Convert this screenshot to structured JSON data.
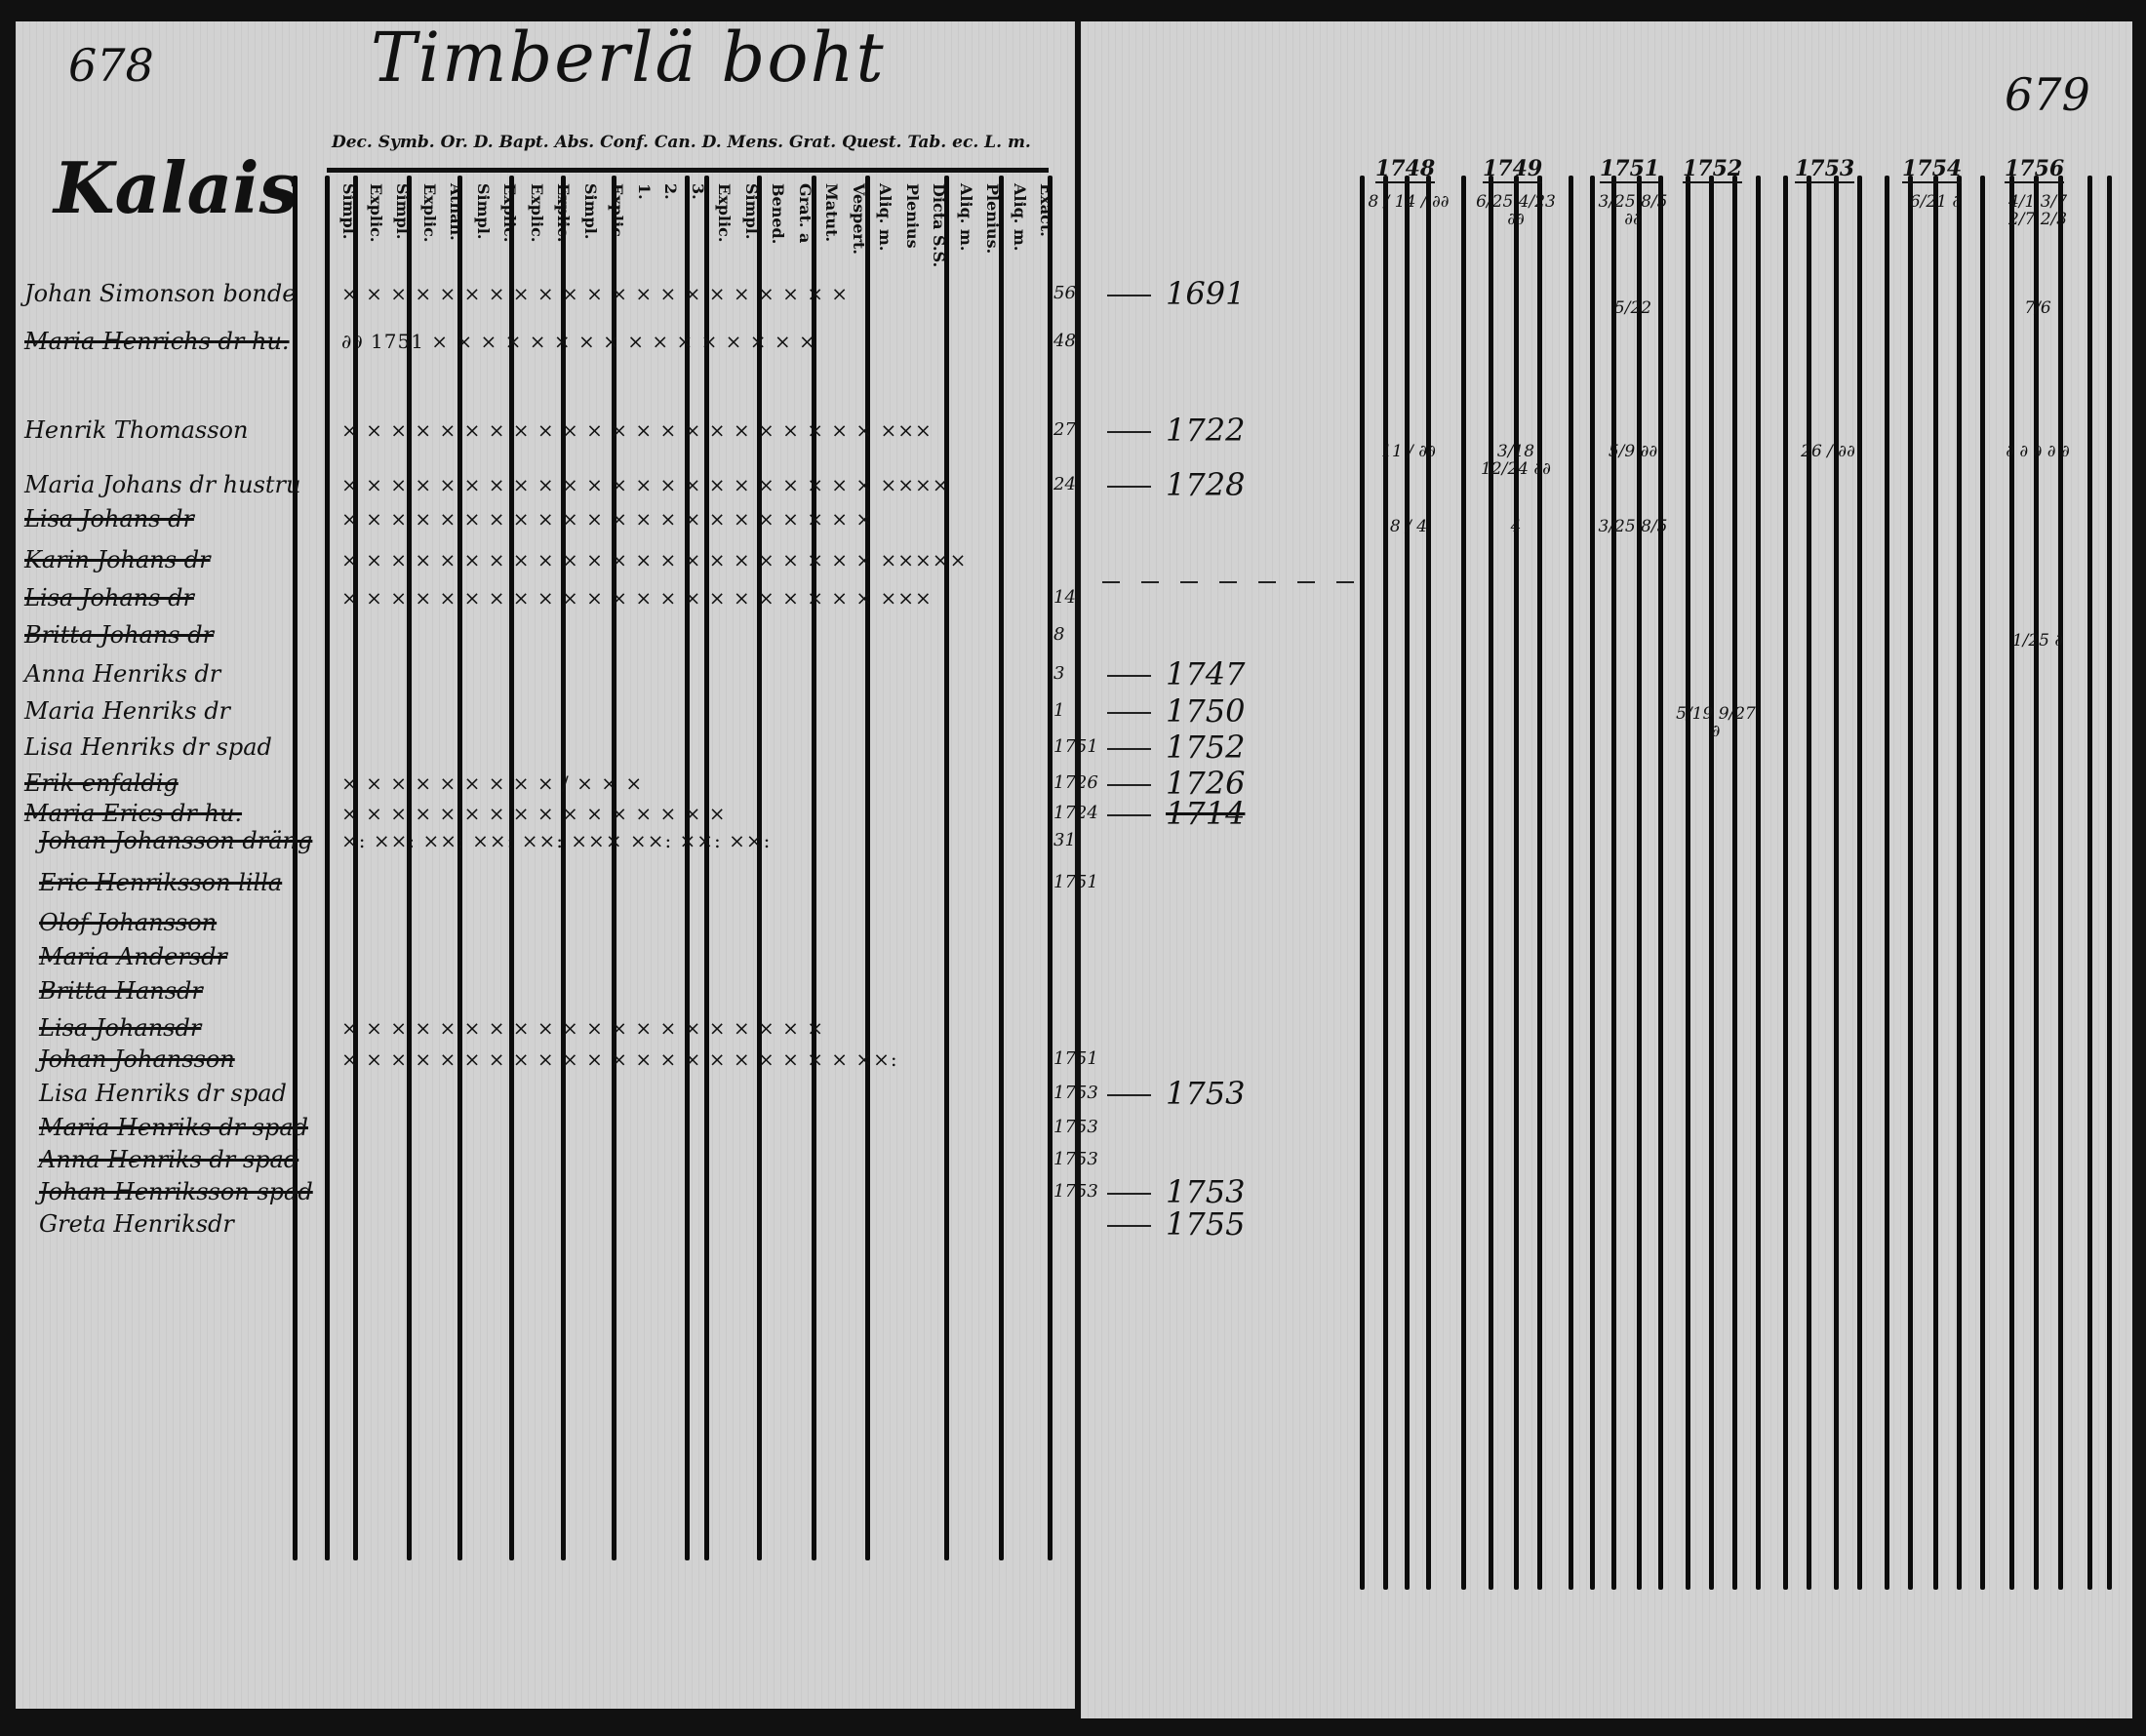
{
  "left_page": {
    "page_number": "678",
    "title": "Timberlä boht",
    "section": "Kalais",
    "header_line": "Dec. Symb. Or. D. Bapt. Abs. Conf. Can. D. Mens. Grat. Quest. Tab. ec. L. m.",
    "column_headers": [
      "Simpl.",
      "Explic.",
      "Simpl.",
      "Explic.",
      "Athan.",
      "Simpl.",
      "Explic.",
      "Explic.",
      "Explic.",
      "Simpl.",
      "Explic.",
      "1.",
      "2.",
      "3.",
      "Explic.",
      "Simpl.",
      "Bened.",
      "Grat. a",
      "Matut.",
      "Vespert.",
      "Aliq. m.",
      "Plenius",
      "Dicta S.S.",
      "Aliq. m.",
      "Plenius.",
      "Aliq. m.",
      "Exact."
    ],
    "rows": [
      {
        "name": "Johan Simonson bonde",
        "struck": false,
        "marks": "× ×  × × × ×  × ×  × ×  × ×  × × ×  × ×  × ×  × ×",
        "age": "56",
        "birth_year": "1691"
      },
      {
        "name": "Maria Henrichs dr hu.",
        "struck": true,
        "marks": "∂∂ 1751  × ×  × ×  × ×  × ×  × ×  × ×  × ×  × ×",
        "age": "48",
        "birth_year": ""
      },
      {
        "name": "Henrik Thomasson",
        "struck": false,
        "marks": "× ×  × × ×  × ×  × ×  × ×  × ×  × × ×  × ×  × ×  × ×  ×××",
        "age": "27",
        "birth_year": "1722"
      },
      {
        "name": "Maria Johans dr hustru",
        "struck": false,
        "marks": "× ×  × × ×  × ×  × ×  × ×  × ×  × × ×  × ×  × ×  × ×  ××××",
        "age": "24",
        "birth_year": "1728"
      },
      {
        "name": "Lisa Johans dr",
        "struck": true,
        "marks": "× ×  × × ×  × ×  × ×  × ×  × ×  × × ×  × ×  × ×  × ×",
        "age": "",
        "birth_year": ""
      },
      {
        "name": "Karin Johans dr",
        "struck": true,
        "marks": "× ×  × × ×  × ×  × ×  × ×  × ×  × × ×  × ×  × ×  × ×  ×××××",
        "age": "",
        "birth_year": ""
      },
      {
        "name": "Lisa Johans dr",
        "struck": true,
        "marks": "× ×  × × ×  × ×  × ×  × ×  × ×  × × ×  × ×  × ×  × ×  ×××",
        "age": "14",
        "birth_year": ""
      },
      {
        "name": "Britta Johans dr",
        "struck": true,
        "marks": "",
        "age": "8",
        "birth_year": ""
      },
      {
        "name": "Anna Henriks dr",
        "struck": false,
        "marks": "",
        "age": "3",
        "birth_year": "1747"
      },
      {
        "name": "Maria Henriks dr",
        "struck": false,
        "marks": "",
        "age": "1",
        "birth_year": "1750"
      },
      {
        "name": "Lisa Henriks dr spad",
        "struck": false,
        "marks": "",
        "age": "1751",
        "birth_year": "1752"
      },
      {
        "name": "Erik enfaldig",
        "struck": true,
        "marks": "×   ×   ×   ×   ×   × × ×  × /  ×   ×   ×",
        "age": "1726",
        "birth_year": "1726"
      },
      {
        "name": "Maria Erics dr hu.",
        "struck": true,
        "marks": "× ×  × ×  × ×  × ×  × ×  × ×  × ×  × ×",
        "age": "1724",
        "birth_year": "1714"
      },
      {
        "name": "Johan Johansson dräng",
        "struck": true,
        "marks": "×:  ××:  ××:  ××:  ××:  ×××  ××:  ××:  ××:",
        "age": "31",
        "birth_year": ""
      },
      {
        "name": "Eric Henriksson lilla",
        "struck": true,
        "marks": "",
        "age": "1751",
        "birth_year": ""
      },
      {
        "name": "Olof Johansson",
        "struck": true,
        "marks": "",
        "age": "",
        "birth_year": ""
      },
      {
        "name": "Maria Andersdr",
        "struck": true,
        "marks": "",
        "age": "",
        "birth_year": ""
      },
      {
        "name": "Britta Hansdr",
        "struck": true,
        "marks": "",
        "age": "",
        "birth_year": ""
      },
      {
        "name": "Lisa Johansdr",
        "struck": true,
        "marks": "× ×  × ×  × ×  × ×  × ×  × × × ×  × ×  × × × ×",
        "age": "",
        "birth_year": ""
      },
      {
        "name": "Johan Johansson",
        "struck": true,
        "marks": "× ×  × × ×  × ×  × ×  × ×  × × ×  × ×  × × ×  × ×  ××:",
        "age": "1751",
        "birth_year": ""
      },
      {
        "name": "Lisa Henriks dr spad",
        "struck": false,
        "marks": "",
        "age": "1753",
        "birth_year": "1753"
      },
      {
        "name": "Maria Henriks dr spad",
        "struck": true,
        "marks": "",
        "age": "1753",
        "birth_year": ""
      },
      {
        "name": "Anna Henriks dr spad",
        "struck": true,
        "marks": "",
        "age": "1753",
        "birth_year": ""
      },
      {
        "name": "Johan Henriksson spad",
        "struck": true,
        "marks": "",
        "age": "1753",
        "birth_year": "1753"
      },
      {
        "name": "Greta Henriksdr",
        "struck": false,
        "marks": "",
        "age": "",
        "birth_year": "1755"
      }
    ]
  },
  "right_page": {
    "page_number": "679",
    "year_headers": [
      "1748",
      "1749",
      "1751",
      "1752",
      "1753",
      "1754",
      "1756"
    ],
    "annotations": [
      {
        "row": 0,
        "year": "1748",
        "text": "8 / 14 / ∂∂"
      },
      {
        "row": 0,
        "year": "1749",
        "text": "6/25 4/23 ∂∂"
      },
      {
        "row": 0,
        "year": "1751",
        "text": "3/25 8/5 ∂∂"
      },
      {
        "row": 0,
        "year": "1754",
        "text": "6/21 ∂"
      },
      {
        "row": 0,
        "year": "1756",
        "text": "4/1 3/7 2/7 2/3"
      },
      {
        "row": 1,
        "year": "1751",
        "text": "5/22"
      },
      {
        "row": 1,
        "year": "1756",
        "text": "7/6"
      },
      {
        "row": 3,
        "year": "1748",
        "text": "11 / ∂∂"
      },
      {
        "row": 3,
        "year": "1749",
        "text": "3/18 12/24 ∂∂"
      },
      {
        "row": 3,
        "year": "1751",
        "text": "5/9 ∂∂"
      },
      {
        "row": 3,
        "year": "1753",
        "text": "26 / ∂∂"
      },
      {
        "row": 3,
        "year": "1756",
        "text": "∂ ∂ ∂ ∂ ∂"
      },
      {
        "row": 5,
        "year": "1748",
        "text": "8 / 4"
      },
      {
        "row": 5,
        "year": "1749",
        "text": "4"
      },
      {
        "row": 5,
        "year": "1751",
        "text": "3/25 8/5"
      },
      {
        "row": 10,
        "year": "1752",
        "text": "5/19 9/27 ∂"
      },
      {
        "row": 8,
        "year": "1756",
        "text": "1/25 ∂"
      }
    ]
  }
}
